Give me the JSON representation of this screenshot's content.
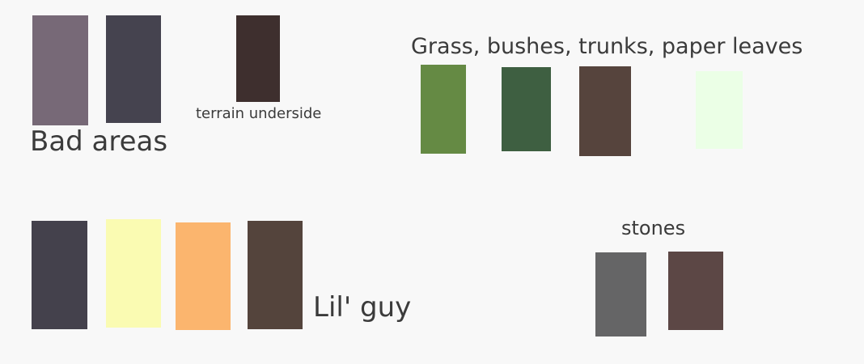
{
  "bad_areas": {
    "label": "Bad areas",
    "underside_label": "terrain underside",
    "swatches": [
      "#776977",
      "#45434f",
      "#3e2f2e"
    ]
  },
  "vegetation": {
    "label": "Grass, bushes, trunks, paper leaves",
    "swatches": [
      "#658a44",
      "#3e5f41",
      "#56443d",
      "#ebffe6"
    ]
  },
  "lil_guy": {
    "label": "Lil' guy",
    "swatches": [
      "#44414c",
      "#fafbb2",
      "#fbb56e",
      "#54443c"
    ]
  },
  "stones": {
    "label": "stones",
    "swatches": [
      "#656566",
      "#5c4745"
    ]
  }
}
